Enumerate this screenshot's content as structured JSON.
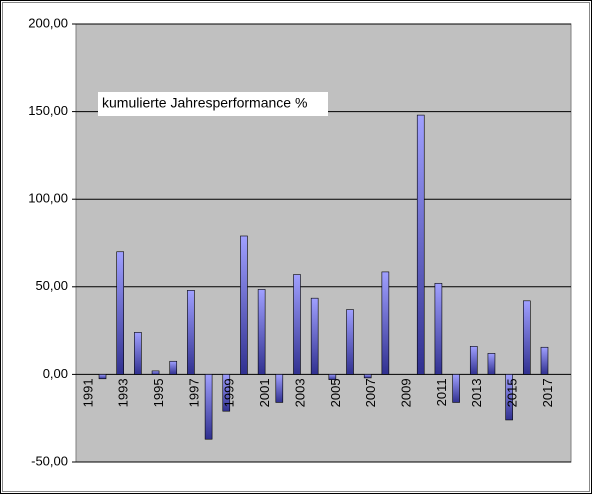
{
  "chart_data": {
    "type": "bar",
    "title": "kumulierte Jahresperformance %",
    "categories": [
      "1991",
      null,
      "1993",
      null,
      "1995",
      null,
      "1997",
      null,
      "1999",
      null,
      "2001",
      null,
      "2003",
      null,
      "2005",
      null,
      "2007",
      null,
      "2009",
      null,
      "2011",
      null,
      "2013",
      null,
      "2015",
      null,
      "2017",
      null
    ],
    "values": [
      0,
      -2.5,
      70,
      24,
      2,
      7.5,
      48,
      -37,
      -21,
      79,
      48.5,
      -16,
      57,
      43.5,
      -3,
      37,
      -2,
      58.5,
      0,
      148,
      52,
      -16,
      16,
      12,
      -26,
      42,
      15.5,
      null
    ],
    "color": "#9999ff",
    "ylim": [
      -50,
      200
    ],
    "yticks": [
      {
        "value": -50,
        "label": "-50,00"
      },
      {
        "value": 0,
        "label": "0,00"
      },
      {
        "value": 50,
        "label": "50,00"
      },
      {
        "value": 100,
        "label": "100,00"
      },
      {
        "value": 150,
        "label": "150,00"
      },
      {
        "value": 200,
        "label": "200,00"
      }
    ],
    "grid": true
  }
}
